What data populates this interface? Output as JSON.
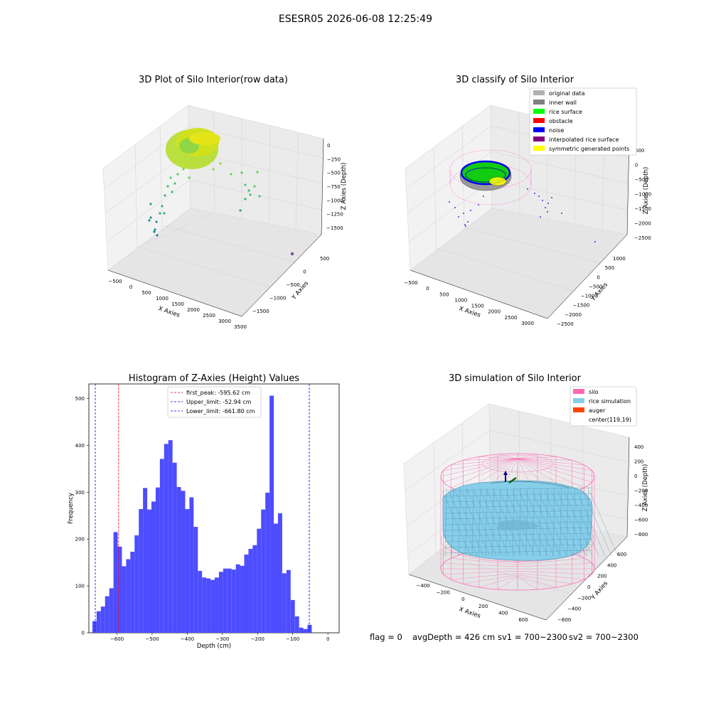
{
  "figure": {
    "suptitle": "ESESR05 2026-06-08 12:25:49",
    "status": {
      "flag": "flag = 0",
      "avg_depth": "avgDepth = 426 cm",
      "sv1": "sv1 = 700~2300",
      "sv2": "sv2 = 700~2300"
    }
  },
  "chart_data": [
    {
      "type": "scatter",
      "projection": "3d",
      "title": "3D Plot of Silo Interior(row data)",
      "xlabel": "X Axies",
      "ylabel": "Y Axies",
      "zlabel": "Z Axies (Depth)",
      "x_ticks": [
        "−500",
        "0",
        "500",
        "1000",
        "1500",
        "2000",
        "2500",
        "3000",
        "3500"
      ],
      "y_ticks": [
        "500",
        "0",
        "−500",
        "−1000",
        "−1500"
      ],
      "z_ticks": [
        "0",
        "−250",
        "−500",
        "−750",
        "−1000",
        "−1250",
        "−1500"
      ],
      "colormap": "viridis"
    },
    {
      "type": "scatter",
      "projection": "3d",
      "title": "3D classify of Silo Interior",
      "xlabel": "X Axies",
      "ylabel": "Y Axies",
      "zlabel": "Z Axies (Depth)",
      "x_ticks": [
        "−500",
        "0",
        "500",
        "1000",
        "1500",
        "2000",
        "2500",
        "3000"
      ],
      "y_ticks": [
        "1000",
        "500",
        "0",
        "−500",
        "−1000",
        "−1500",
        "−2000",
        "−2500"
      ],
      "z_ticks": [
        "500",
        "0",
        "−500",
        "−1000",
        "−1500",
        "−2000",
        "−2500"
      ],
      "legend": [
        {
          "name": "original data",
          "color": "#b0b0b0"
        },
        {
          "name": "inner wall",
          "color": "#808080"
        },
        {
          "name": "rice surface",
          "color": "#00ff00"
        },
        {
          "name": "obstacle",
          "color": "#ff0000"
        },
        {
          "name": "noise",
          "color": "#0000ff"
        },
        {
          "name": "interpolated rice surface",
          "color": "#800080"
        },
        {
          "name": "symmetric generated points",
          "color": "#ffff00"
        }
      ],
      "legend_loc": "top-right",
      "partial_z_tick_top": "500"
    },
    {
      "type": "bar",
      "title": "Histogram of Z-Axies (Height) Values",
      "xlabel": "Depth (cm)",
      "ylabel": "Frequency",
      "x_ticks": [
        -600,
        -500,
        -400,
        -300,
        -200,
        -100,
        0
      ],
      "x_tick_labels": [
        "−600",
        "−500",
        "−400",
        "−300",
        "−200",
        "−100",
        "0"
      ],
      "y_ticks": [
        0,
        100,
        200,
        300,
        400,
        500
      ],
      "xlim": [
        -680,
        32
      ],
      "ylim": [
        0,
        531
      ],
      "bin_start": -670,
      "bin_width": 12,
      "values": [
        25,
        46,
        56,
        78,
        95,
        215,
        184,
        142,
        157,
        173,
        208,
        264,
        309,
        263,
        280,
        310,
        371,
        403,
        411,
        363,
        311,
        303,
        264,
        289,
        226,
        132,
        118,
        116,
        113,
        118,
        130,
        137,
        137,
        135,
        146,
        143,
        167,
        179,
        187,
        222,
        263,
        299,
        506,
        233,
        255,
        127,
        134,
        70,
        35,
        11,
        8,
        17
      ],
      "bar_color": "#4d4dff",
      "vlines": [
        {
          "x": -595.62,
          "color": "#ff0000",
          "label": "first_peak: -595.62 cm"
        },
        {
          "x": -52.94,
          "color": "#0000ff",
          "label": "Upper_limit: -52.94 cm"
        },
        {
          "x": -661.8,
          "color": "#0000ff",
          "label": "Lower_limit: -661.80 cm"
        }
      ],
      "legend_loc": "upper-center"
    },
    {
      "type": "area",
      "projection": "3d",
      "title": "3D simulation of Silo Interior",
      "xlabel": "X Axies",
      "ylabel": "Y Axies",
      "zlabel": "Z Axies (Depth)",
      "x_ticks": [
        "−400",
        "−200",
        "0",
        "200",
        "400",
        "600"
      ],
      "y_ticks": [
        "600",
        "400",
        "200",
        "0",
        "−200",
        "−400",
        "−600"
      ],
      "z_ticks": [
        "400",
        "200",
        "0",
        "−200",
        "−400",
        "−600",
        "−800"
      ],
      "legend": [
        {
          "name": "silo",
          "color": "#ff69b4"
        },
        {
          "name": "rice simulation",
          "color": "#87ceeb"
        },
        {
          "name": "auger",
          "color": "#ff4500"
        },
        {
          "name": "center(119,19)",
          "color": "none"
        }
      ],
      "legend_loc": "top-right"
    }
  ]
}
